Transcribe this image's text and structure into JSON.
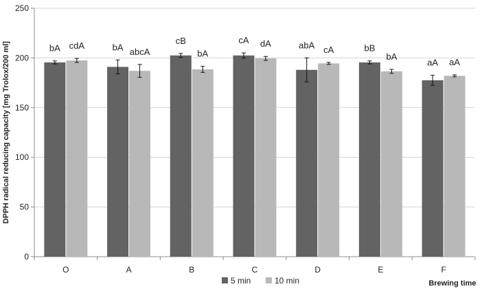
{
  "chart_data": {
    "type": "bar",
    "ylabel": "DPPH radical reducing capacity [mg Trolox/200 ml]",
    "xlabel": "Brewing time",
    "ylim": [
      0,
      250
    ],
    "yticks": [
      0,
      50,
      100,
      150,
      200,
      250
    ],
    "grid": true,
    "legend_position": "bottom",
    "categories": [
      "O",
      "A",
      "B",
      "C",
      "D",
      "E",
      "F"
    ],
    "series": [
      {
        "name": "5 min",
        "color": "#636363",
        "values": [
          195.5,
          191,
          202.5,
          202.5,
          188,
          195.5,
          177.5
        ],
        "errors": [
          1.5,
          7,
          2,
          2.5,
          12,
          1.5,
          5
        ],
        "labels": [
          "bA",
          "bA",
          "cB",
          "cA",
          "abA",
          "bB",
          "aA"
        ]
      },
      {
        "name": "10 min",
        "color": "#b8b8b8",
        "values": [
          197.5,
          187,
          188.5,
          199.5,
          194.5,
          186.5,
          182
        ],
        "errors": [
          2,
          6.5,
          3,
          2,
          1,
          2,
          1
        ],
        "labels": [
          "cdA",
          "abcA",
          "bA",
          "dA",
          "cA",
          "bA",
          "aA"
        ]
      }
    ]
  }
}
